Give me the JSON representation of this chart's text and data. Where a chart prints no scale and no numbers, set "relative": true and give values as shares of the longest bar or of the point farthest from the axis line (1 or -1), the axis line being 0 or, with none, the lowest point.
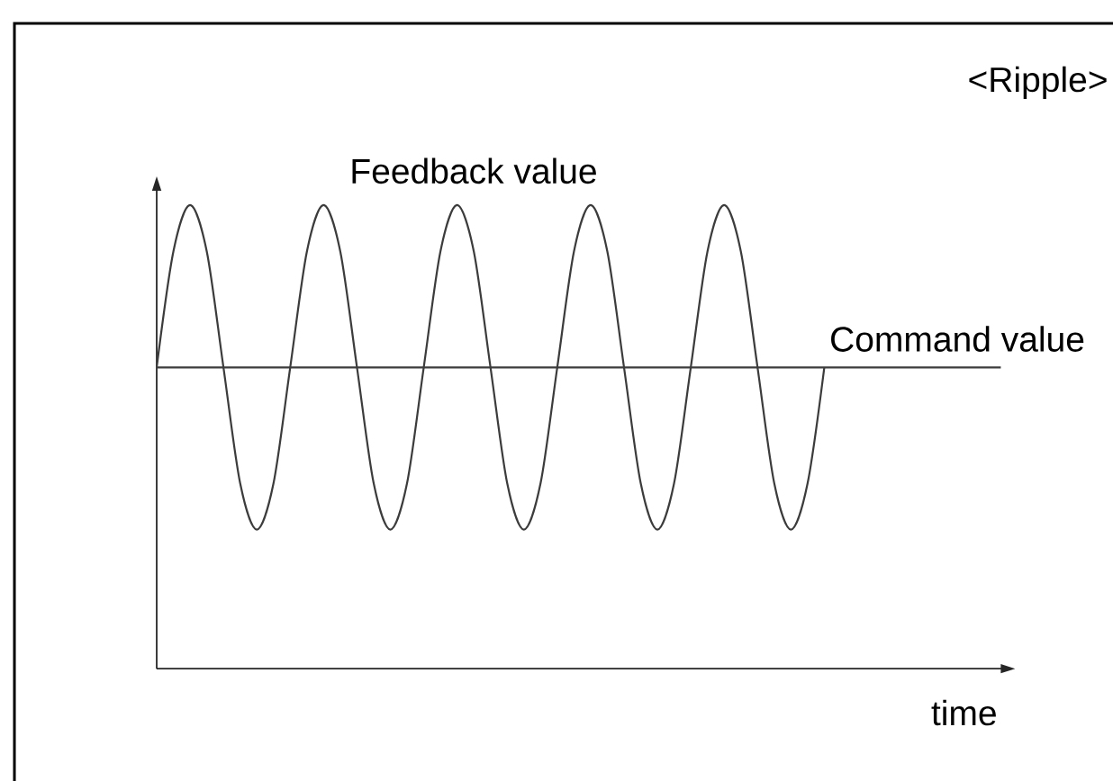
{
  "chart_data": {
    "type": "line",
    "title": "<Ripple>",
    "xlabel": "time",
    "relative": true,
    "categories": [
      null,
      null,
      null,
      null,
      null,
      null,
      null,
      null,
      null,
      null,
      null,
      null,
      null,
      null,
      null,
      null,
      null,
      null,
      null,
      null,
      null,
      null,
      null,
      null,
      null,
      null,
      null,
      null,
      null,
      null,
      null,
      null,
      null,
      null,
      null,
      null,
      null,
      null,
      null,
      null,
      null
    ],
    "series": [
      {
        "name": "Feedback value",
        "color": "#3c3c3c",
        "values": [
          0.65,
          0.9,
          1.0,
          0.9,
          0.65,
          0.4,
          0.3,
          0.4,
          0.65,
          0.9,
          1.0,
          0.9,
          0.65,
          0.4,
          0.3,
          0.4,
          0.65,
          0.9,
          1.0,
          0.9,
          0.65,
          0.4,
          0.3,
          0.4,
          0.65,
          0.9,
          1.0,
          0.9,
          0.65,
          0.4,
          0.3,
          0.4,
          0.65,
          0.9,
          1.0,
          0.9,
          0.65,
          0.4,
          0.3,
          0.4,
          0.65
        ]
      }
    ],
    "ref_lines": [
      {
        "axis": "y",
        "value": 0.65,
        "label": "Command value",
        "color": "#3c3c3c"
      }
    ]
  }
}
